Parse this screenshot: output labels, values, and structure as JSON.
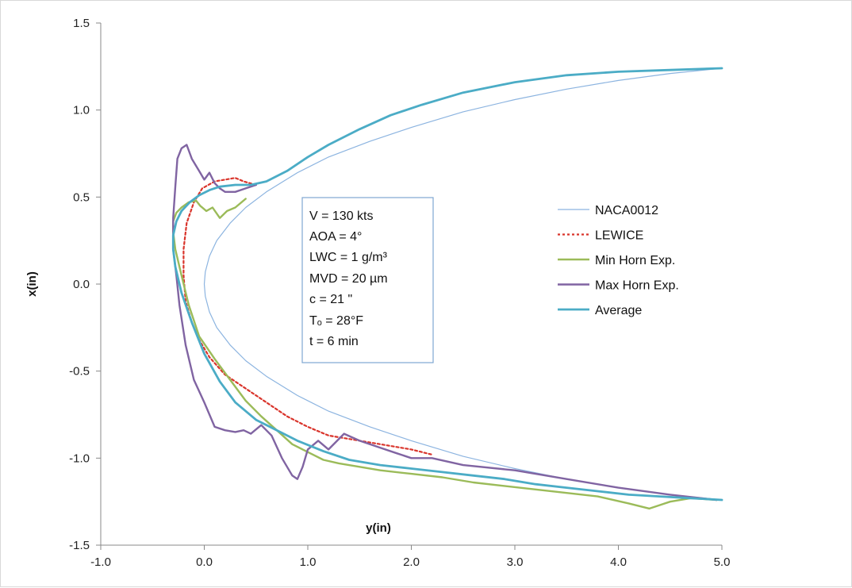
{
  "chart_data": {
    "type": "line",
    "title": "",
    "xlabel": "y(in)",
    "ylabel": "x(in)",
    "xlim": [
      -1.0,
      5.0
    ],
    "ylim": [
      -1.5,
      1.5
    ],
    "x_ticks": [
      "-1.0",
      "0.0",
      "1.0",
      "2.0",
      "3.0",
      "4.0",
      "5.0"
    ],
    "y_ticks": [
      "1.5",
      "1.0",
      "0.5",
      "0.0",
      "-0.5",
      "-1.0",
      "-1.5"
    ],
    "x_tick_values": [
      -1,
      0,
      1,
      2,
      3,
      4,
      5
    ],
    "y_tick_values": [
      1.5,
      1.0,
      0.5,
      0.0,
      -0.5,
      -1.0,
      -1.5
    ],
    "grid": false,
    "legend_position": "right",
    "annotation": [
      "V = 130 kts",
      "AOA = 4°",
      "LWC = 1 g/m³",
      "MVD = 20 µm",
      "c = 21 \"",
      "Tₒ = 28°F",
      "t = 6 min"
    ],
    "series": [
      {
        "name": "NACA0012",
        "color": "#8cb4e0",
        "dash": "",
        "x": [
          5.0,
          4.5,
          4.0,
          3.5,
          3.0,
          2.5,
          2.0,
          1.6,
          1.2,
          0.9,
          0.6,
          0.4,
          0.25,
          0.12,
          0.05,
          0.01,
          0.0,
          0.01,
          0.05,
          0.12,
          0.25,
          0.4,
          0.6,
          0.9,
          1.2,
          1.6,
          2.0,
          2.5,
          3.0,
          3.5,
          4.0,
          4.5,
          5.0
        ],
        "y": [
          1.24,
          1.21,
          1.17,
          1.12,
          1.06,
          0.99,
          0.9,
          0.82,
          0.73,
          0.64,
          0.53,
          0.44,
          0.35,
          0.25,
          0.16,
          0.07,
          0.0,
          -0.07,
          -0.16,
          -0.25,
          -0.35,
          -0.44,
          -0.53,
          -0.64,
          -0.73,
          -0.82,
          -0.9,
          -0.99,
          -1.06,
          -1.12,
          -1.17,
          -1.21,
          -1.24
        ]
      },
      {
        "name": "LEWICE",
        "color": "#d9342b",
        "dash": "3,3",
        "x": [
          0.5,
          0.38,
          0.3,
          0.2,
          0.1,
          -0.02,
          -0.1,
          -0.17,
          -0.2,
          -0.2,
          -0.18,
          -0.12,
          -0.05,
          0.05,
          0.2,
          0.4,
          0.6,
          0.8,
          1.0,
          1.2,
          1.4,
          1.6,
          1.8,
          2.0,
          2.2
        ],
        "y": [
          0.57,
          0.59,
          0.61,
          0.6,
          0.59,
          0.55,
          0.47,
          0.35,
          0.2,
          0.05,
          -0.1,
          -0.22,
          -0.32,
          -0.42,
          -0.52,
          -0.6,
          -0.68,
          -0.76,
          -0.82,
          -0.87,
          -0.89,
          -0.91,
          -0.93,
          -0.95,
          -0.98
        ]
      },
      {
        "name": "Min Horn Exp.",
        "color": "#9bbb59",
        "dash": "",
        "x": [
          4.95,
          4.7,
          4.5,
          4.3,
          4.1,
          3.8,
          3.5,
          3.2,
          2.9,
          2.6,
          2.3,
          2.0,
          1.7,
          1.5,
          1.3,
          1.15,
          1.05,
          0.95,
          0.85,
          0.7,
          0.55,
          0.4,
          0.25,
          0.1,
          -0.05,
          -0.15,
          -0.22,
          -0.28,
          -0.3,
          -0.3,
          -0.27,
          -0.22,
          -0.15,
          -0.08,
          -0.04,
          0.02,
          0.08,
          0.15,
          0.22,
          0.3,
          0.4
        ],
        "y": [
          -1.24,
          -1.23,
          -1.25,
          -1.29,
          -1.26,
          -1.22,
          -1.2,
          -1.18,
          -1.16,
          -1.14,
          -1.11,
          -1.09,
          -1.07,
          -1.05,
          -1.03,
          -1.01,
          -0.98,
          -0.95,
          -0.92,
          -0.84,
          -0.76,
          -0.67,
          -0.55,
          -0.43,
          -0.3,
          -0.12,
          0.05,
          0.2,
          0.3,
          0.36,
          0.41,
          0.44,
          0.47,
          0.48,
          0.45,
          0.42,
          0.44,
          0.38,
          0.42,
          0.44,
          0.49
        ]
      },
      {
        "name": "Max Horn Exp.",
        "color": "#8064a2",
        "dash": "",
        "x": [
          4.95,
          4.5,
          4.0,
          3.5,
          3.0,
          2.5,
          2.2,
          2.0,
          1.85,
          1.7,
          1.5,
          1.35,
          1.2,
          1.1,
          1.0,
          0.95,
          0.9,
          0.85,
          0.75,
          0.65,
          0.55,
          0.45,
          0.38,
          0.3,
          0.2,
          0.1,
          0.0,
          -0.1,
          -0.18,
          -0.24,
          -0.27,
          -0.3,
          -0.3,
          -0.28,
          -0.26,
          -0.22,
          -0.17,
          -0.12,
          -0.05,
          0.0,
          0.05,
          0.1,
          0.15,
          0.2,
          0.25,
          0.3,
          0.4,
          0.5
        ],
        "y": [
          -1.24,
          -1.21,
          -1.17,
          -1.12,
          -1.07,
          -1.04,
          -1.0,
          -1.0,
          -0.97,
          -0.94,
          -0.9,
          -0.86,
          -0.95,
          -0.9,
          -0.95,
          -1.05,
          -1.12,
          -1.1,
          -1.0,
          -0.87,
          -0.81,
          -0.86,
          -0.84,
          -0.85,
          -0.84,
          -0.82,
          -0.68,
          -0.55,
          -0.35,
          -0.12,
          0.05,
          0.2,
          0.38,
          0.56,
          0.72,
          0.78,
          0.8,
          0.72,
          0.65,
          0.6,
          0.64,
          0.58,
          0.55,
          0.53,
          0.53,
          0.53,
          0.55,
          0.57
        ]
      },
      {
        "name": "Average",
        "color": "#4bacc6",
        "dash": "",
        "x": [
          5.0,
          4.7,
          4.4,
          4.1,
          3.8,
          3.5,
          3.2,
          2.9,
          2.6,
          2.3,
          2.0,
          1.7,
          1.4,
          1.15,
          0.9,
          0.7,
          0.5,
          0.3,
          0.15,
          0.0,
          -0.12,
          -0.22,
          -0.28,
          -0.3,
          -0.3,
          -0.27,
          -0.22,
          -0.14,
          -0.05,
          0.05,
          0.15,
          0.3,
          0.45,
          0.6,
          0.8,
          1.0,
          1.2,
          1.5,
          1.8,
          2.1,
          2.5,
          3.0,
          3.5,
          4.0,
          4.5,
          5.0
        ],
        "y": [
          -1.24,
          -1.23,
          -1.22,
          -1.21,
          -1.19,
          -1.17,
          -1.15,
          -1.12,
          -1.1,
          -1.08,
          -1.06,
          -1.04,
          -1.01,
          -0.96,
          -0.9,
          -0.84,
          -0.78,
          -0.68,
          -0.56,
          -0.4,
          -0.22,
          -0.05,
          0.1,
          0.2,
          0.28,
          0.36,
          0.42,
          0.47,
          0.51,
          0.54,
          0.56,
          0.57,
          0.57,
          0.59,
          0.65,
          0.73,
          0.8,
          0.89,
          0.97,
          1.03,
          1.1,
          1.16,
          1.2,
          1.22,
          1.23,
          1.24
        ]
      }
    ]
  }
}
